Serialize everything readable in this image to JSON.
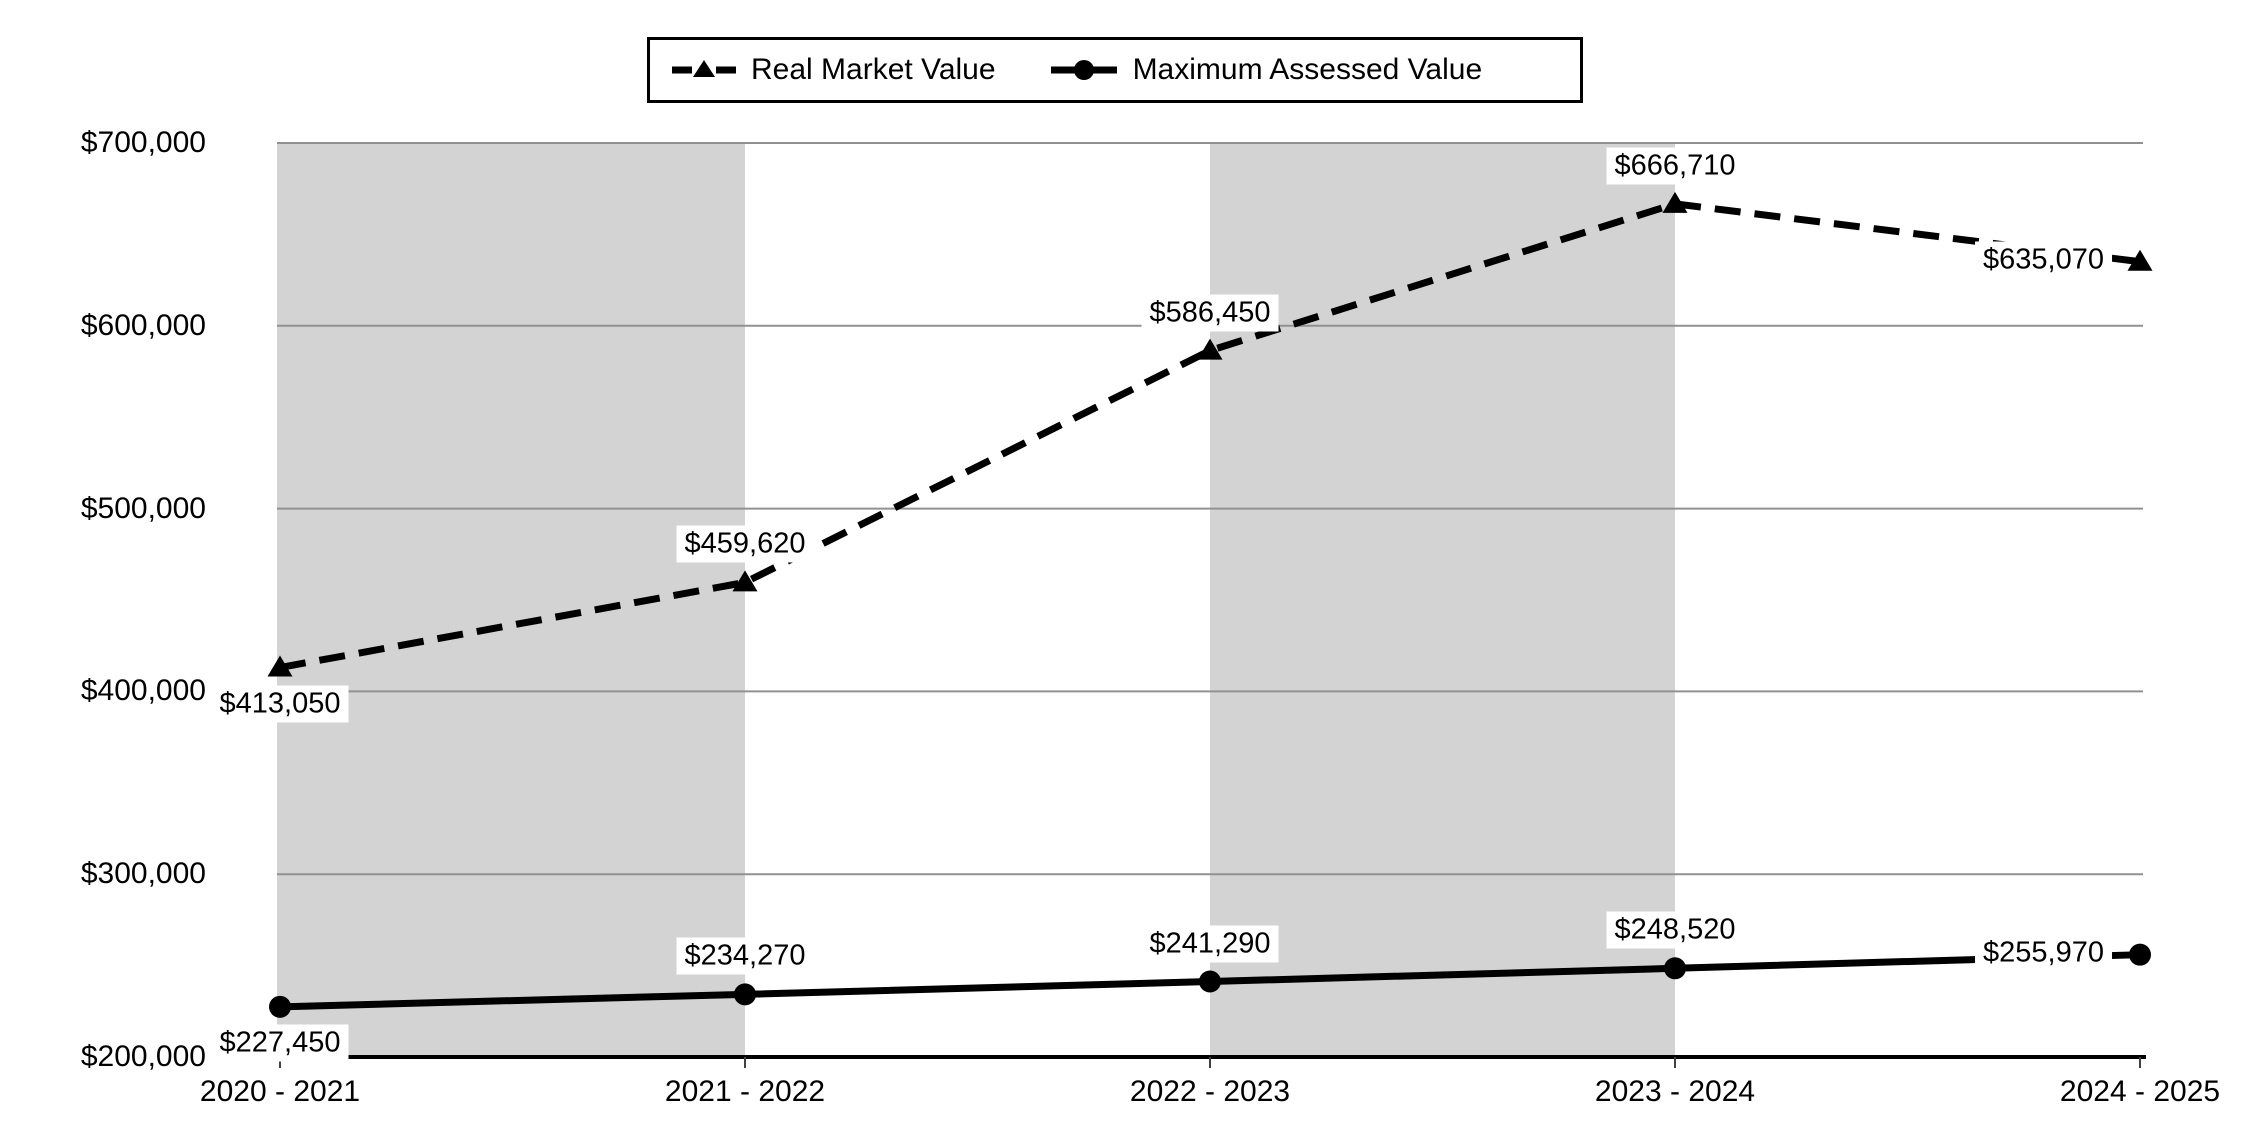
{
  "chart_data": {
    "type": "line",
    "title": "",
    "categories": [
      "2020 - 2021",
      "2021 - 2022",
      "2022 - 2023",
      "2023 - 2024",
      "2024 - 2025"
    ],
    "series": [
      {
        "name": "Real Market Value",
        "line_style": "dashed",
        "marker": "triangle",
        "color": "#000000",
        "values": [
          413050,
          459620,
          586450,
          666710,
          635070
        ],
        "data_labels": [
          "$413,050",
          "$459,620",
          "$586,450",
          "$666,710",
          "$635,070"
        ],
        "label_positions": [
          "below",
          "above",
          "above",
          "above",
          "left"
        ]
      },
      {
        "name": "Maximum Assessed Value",
        "line_style": "solid",
        "marker": "circle",
        "color": "#000000",
        "values": [
          227450,
          234270,
          241290,
          248520,
          255970
        ],
        "data_labels": [
          "$227,450",
          "$234,270",
          "$241,290",
          "$248,520",
          "$255,970"
        ],
        "label_positions": [
          "below",
          "above",
          "above",
          "above",
          "left"
        ]
      }
    ],
    "ylim": [
      200000,
      700000
    ],
    "y_tick_step": 100000,
    "y_tick_labels": [
      "$200,000",
      "$300,000",
      "$400,000",
      "$500,000",
      "$600,000",
      "$700,000"
    ],
    "grid": true,
    "legend_position": "top",
    "background_bands": {
      "color": "#d3d3d3",
      "between_categories": [
        [
          0,
          1
        ],
        [
          2,
          3
        ]
      ]
    },
    "gridline_color": "#919191",
    "axis_color": "#000000",
    "tick_mark_color": "#404040",
    "data_label_background": "#ffffff"
  }
}
